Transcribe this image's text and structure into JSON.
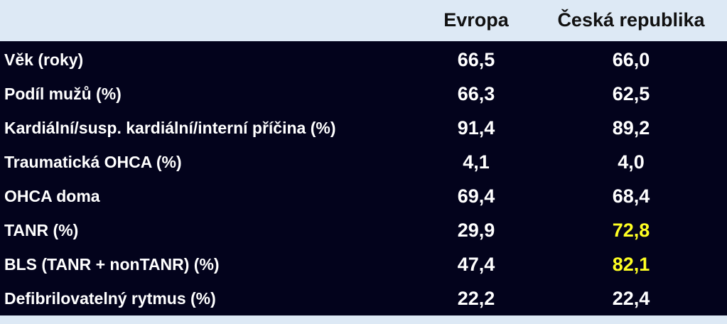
{
  "highlight_color": "#ffff22",
  "chart_data": {
    "type": "table",
    "columns": [
      "Evropa",
      "Česká republika"
    ],
    "rows": [
      {
        "label": "Věk (roky)",
        "values": [
          "66,5",
          "66,0"
        ],
        "highlight": [
          false,
          false
        ]
      },
      {
        "label": "Podíl mužů (%)",
        "values": [
          "66,3",
          "62,5"
        ],
        "highlight": [
          false,
          false
        ]
      },
      {
        "label": "Kardiální/susp. kardiální/interní příčina (%)",
        "values": [
          "91,4",
          "89,2"
        ],
        "highlight": [
          false,
          false
        ]
      },
      {
        "label": "Traumatická OHCA (%)",
        "values": [
          "4,1",
          "4,0"
        ],
        "highlight": [
          false,
          false
        ]
      },
      {
        "label": "OHCA doma",
        "values": [
          "69,4",
          "68,4"
        ],
        "highlight": [
          false,
          false
        ]
      },
      {
        "label": "TANR (%)",
        "values": [
          "29,9",
          "72,8"
        ],
        "highlight": [
          false,
          true
        ]
      },
      {
        "label": "BLS (TANR + nonTANR) (%)",
        "values": [
          "47,4",
          "82,1"
        ],
        "highlight": [
          false,
          true
        ]
      },
      {
        "label": "Defibrilovatelný rytmus (%)",
        "values": [
          "22,2",
          "22,4"
        ],
        "highlight": [
          false,
          false
        ]
      }
    ]
  }
}
